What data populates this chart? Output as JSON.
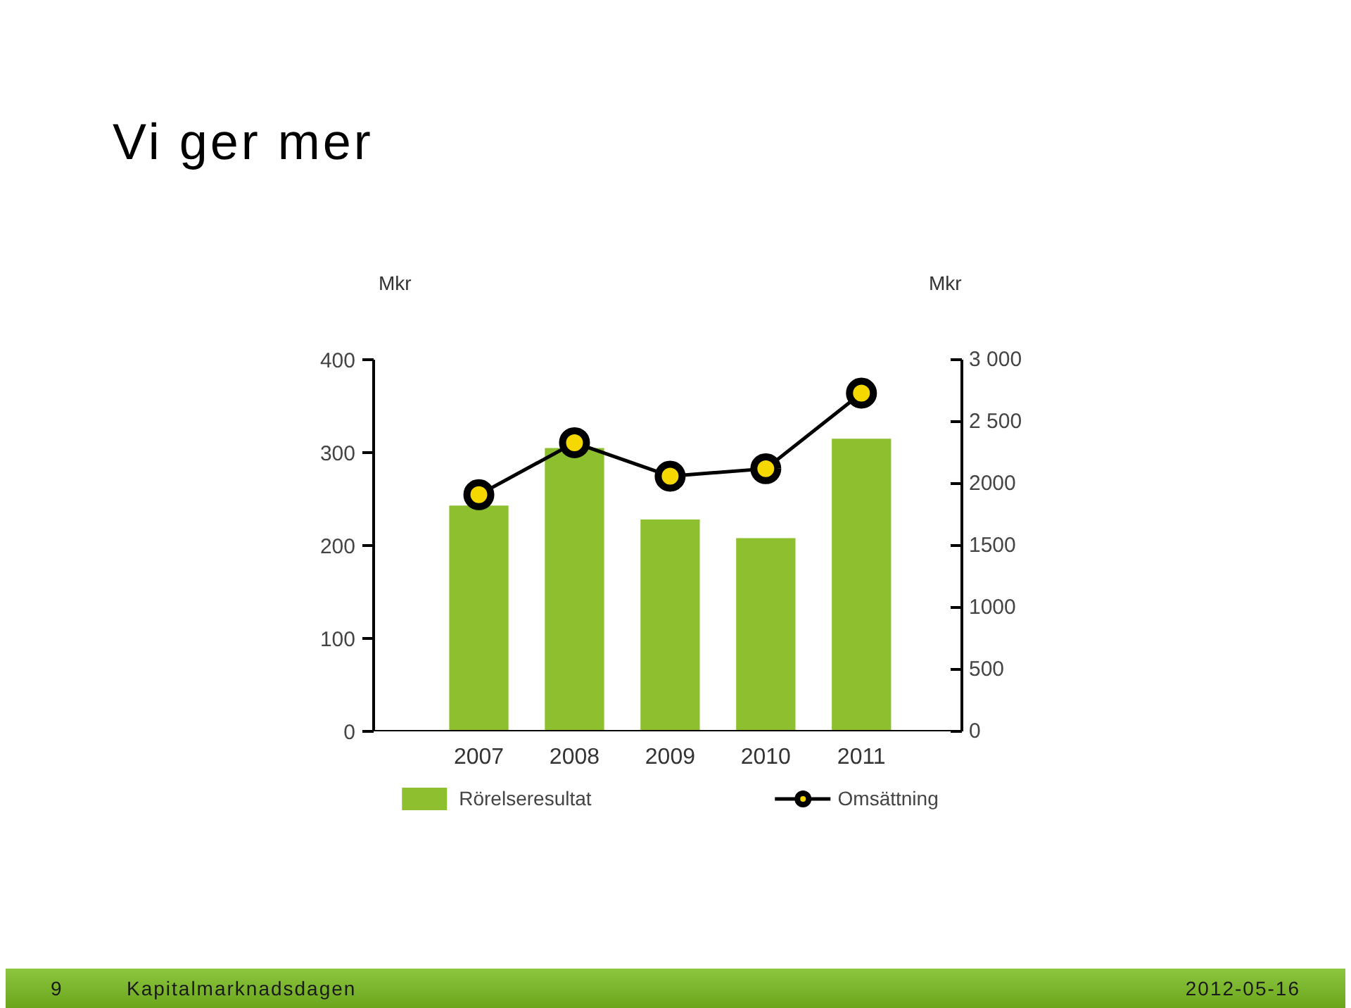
{
  "chart_data": {
    "type": "bar",
    "title": "Vi ger mer",
    "categories": [
      "2007",
      "2008",
      "2009",
      "2010",
      "2011"
    ],
    "ylabel": "Mkr",
    "y2label": "Mkr",
    "ylim": [
      0,
      400
    ],
    "yticks": [
      0,
      100,
      200,
      300,
      400
    ],
    "y2lim": [
      0,
      3000
    ],
    "y2ticks": [
      0,
      500,
      1000,
      1500,
      2000,
      {
        "value": 2500,
        "label": "2 500"
      },
      {
        "value": 3000,
        "label": "3 000"
      }
    ],
    "series": [
      {
        "name": "Rörelseresultat",
        "color": "#8dbf2e",
        "values": [
          243,
          305,
          228,
          208,
          315
        ]
      },
      {
        "name": "Omsättning",
        "type": "line",
        "axis": "y2",
        "color": "#000000",
        "marker": "circle",
        "values": [
          1910,
          2330,
          2060,
          2120,
          2730
        ]
      }
    ],
    "grid": false,
    "legend": "bottom",
    "annotations": [
      "9",
      "Kapitalmarknadsdagen",
      "2012-05-16"
    ]
  }
}
